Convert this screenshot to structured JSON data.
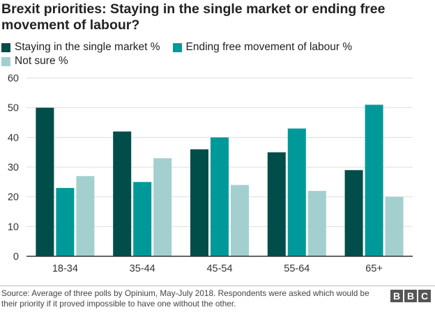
{
  "title": "Brexit priorities: Staying in the single market or ending free movement of labour?",
  "chart_data": {
    "type": "bar",
    "title": "Brexit priorities: Staying in the single market or ending free movement of labour?",
    "categories": [
      "18-34",
      "35-44",
      "45-54",
      "55-64",
      "65+"
    ],
    "series": [
      {
        "name": "Staying in the single market %",
        "color": "#004d4a",
        "values": [
          50,
          42,
          36,
          35,
          29
        ]
      },
      {
        "name": "Ending free movement of labour %",
        "color": "#00999a",
        "values": [
          23,
          25,
          40,
          43,
          51
        ]
      },
      {
        "name": "Not sure %",
        "color": "#a3cfcf",
        "values": [
          27,
          33,
          24,
          22,
          20
        ]
      }
    ],
    "ylim": [
      0,
      60
    ],
    "yticks": [
      0,
      10,
      20,
      30,
      40,
      50,
      60
    ],
    "grid": true,
    "legend_position": "top"
  },
  "source": "Source: Average of three polls by Opinium, May-July 2018. Respondents were asked which would be their priority if it proved impossible to have one without the other.",
  "logo": {
    "letters": [
      "B",
      "B",
      "C"
    ]
  }
}
